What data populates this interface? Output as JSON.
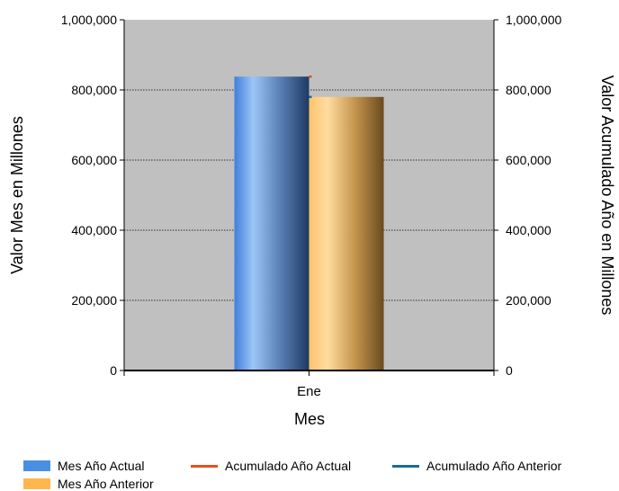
{
  "chart_data": {
    "type": "bar",
    "categories": [
      "Ene"
    ],
    "series": [
      {
        "name": "Mes Año Actual",
        "kind": "bar",
        "axis": "left",
        "values": [
          838000
        ],
        "color": "#4a90e2"
      },
      {
        "name": "Mes Año Anterior",
        "kind": "bar",
        "axis": "left",
        "values": [
          780000
        ],
        "color": "#ffb74d"
      },
      {
        "name": "Acumulado Año Actual",
        "kind": "line",
        "axis": "right",
        "values": [
          838000
        ],
        "color": "#e8501c"
      },
      {
        "name": "Acumulado Año Anterior",
        "kind": "line",
        "axis": "right",
        "values": [
          780000
        ],
        "color": "#1a6aa0"
      }
    ],
    "xlabel": "Mes",
    "ylabel": "Valor Mes en Millones",
    "y2label": "Valor Acumulado Año en Millones",
    "ylim": [
      0,
      1000000
    ],
    "y2lim": [
      0,
      1000000
    ],
    "yticks": [
      "0",
      "200,000",
      "400,000",
      "600,000",
      "800,000",
      "1,000,000"
    ],
    "y2ticks": [
      "0",
      "200,000",
      "400,000",
      "600,000",
      "800,000",
      "1,000,000"
    ],
    "grid": true,
    "plot_background": "#c0c0c0",
    "legend_position": "bottom"
  }
}
